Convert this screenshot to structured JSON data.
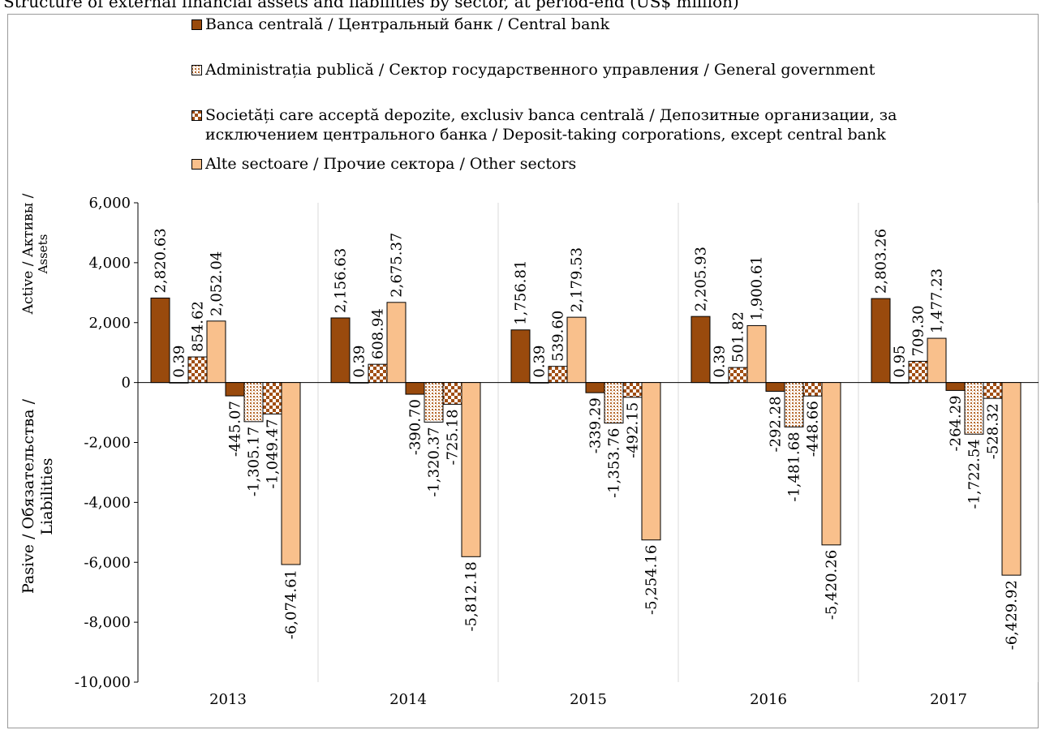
{
  "title": "Structure of external financial assets and liabilities by sector, at period-end (US$ million)",
  "colors": {
    "central_bank": "#994a0d",
    "other_sectors": "#f9c08c",
    "pattern_dark": "#a14e13",
    "pattern_light": "#ffffff"
  },
  "legend": [
    {
      "key": "cb",
      "label": "Banca centrală / Центральный банк / Central bank"
    },
    {
      "key": "gg",
      "label": "Administrația publică / Сектор государственного управления / General government"
    },
    {
      "key": "dt",
      "label": "Societăți care acceptă depozite, exclusiv banca centrală / Депозитные организации, за исключением центрального банка / Deposit-taking corporations, except central bank"
    },
    {
      "key": "os",
      "label": "Alte sectoare / Прочие сектора / Other sectors"
    }
  ],
  "chart_data": {
    "type": "bar",
    "categories": [
      "2013",
      "2014",
      "2015",
      "2016",
      "2017"
    ],
    "ylim": [
      -10000,
      6000
    ],
    "yticks": [
      6000,
      4000,
      2000,
      0,
      -2000,
      -4000,
      -6000,
      -8000,
      -10000
    ],
    "ytick_labels": [
      "6,000",
      "4,000",
      "2,000",
      "0",
      "-2,000",
      "-4,000",
      "-6,000",
      "-8,000",
      "-10,000"
    ],
    "ylabel_assets": "Active  / Активы / Assets",
    "ylabel_liabilities": "Pasive / Обязательства / Liabilities",
    "bar_order": [
      "cb_assets",
      "gg_assets",
      "dt_assets",
      "os_assets",
      "cb_liab",
      "gg_liab",
      "dt_liab",
      "os_liab"
    ],
    "series": [
      {
        "name": "Banca centrală / Центральный банк / Central bank",
        "side": "assets",
        "key": "cb_assets",
        "values": [
          2820.63,
          2156.63,
          1756.81,
          2205.93,
          2803.26
        ],
        "labels": [
          "2,820.63",
          "2,156.63",
          "1,756.81",
          "2,205.93",
          "2,803.26"
        ]
      },
      {
        "name": "Administrația publică / Сектор государственного управления / General government",
        "side": "assets",
        "key": "gg_assets",
        "values": [
          0.39,
          0.39,
          0.39,
          0.39,
          0.95
        ],
        "labels": [
          "0.39",
          "0.39",
          "0.39",
          "0.39",
          "0.95"
        ]
      },
      {
        "name": "Societăți care acceptă depozite, exclusiv banca centrală / Депозитные организации, за исключением центрального банка / Deposit-taking corporations, except central bank",
        "side": "assets",
        "key": "dt_assets",
        "values": [
          854.62,
          608.94,
          539.6,
          501.82,
          709.3
        ],
        "labels": [
          "854.62",
          "608.94",
          "539.60",
          "501.82",
          "709.30"
        ]
      },
      {
        "name": "Alte sectoare / Прочие сектора / Other sectors",
        "side": "assets",
        "key": "os_assets",
        "values": [
          2052.04,
          2675.37,
          2179.53,
          1900.61,
          1477.23
        ],
        "labels": [
          "2,052.04",
          "2,675.37",
          "2,179.53",
          "1,900.61",
          "1,477.23"
        ]
      },
      {
        "name": "Banca centrală / Центральный банк / Central bank",
        "side": "liabilities",
        "key": "cb_liab",
        "values": [
          -445.07,
          -390.7,
          -339.29,
          -292.28,
          -264.29
        ],
        "labels": [
          "-445.07",
          "-390.70",
          "-339.29",
          "-292.28",
          "-264.29"
        ]
      },
      {
        "name": "Administrația publică / Сектор государственного управления / General government",
        "side": "liabilities",
        "key": "gg_liab",
        "values": [
          -1305.17,
          -1320.37,
          -1353.76,
          -1481.68,
          -1722.54
        ],
        "labels": [
          "-1,305.17",
          "-1,320.37",
          "-1,353.76",
          "-1,481.68",
          "-1,722.54"
        ]
      },
      {
        "name": "Societăți care acceptă depozite, exclusiv banca centrală / Депозитные организации, за исключением центрального банка / Deposit-taking corporations, except central bank",
        "side": "liabilities",
        "key": "dt_liab",
        "values": [
          -1049.47,
          -725.18,
          -492.15,
          -448.66,
          -528.32
        ],
        "labels": [
          "-1,049.47",
          "-725.18",
          "-492.15",
          "-448.66",
          "-528.32"
        ]
      },
      {
        "name": "Alte sectoare / Прочие сектора / Other sectors",
        "side": "liabilities",
        "key": "os_liab",
        "values": [
          -6074.61,
          -5812.18,
          -5254.16,
          -5420.26,
          -6429.92
        ],
        "labels": [
          "-6,074.61",
          "-5,812.18",
          "-5,254.16",
          "-5,420.26",
          "-6,429.92"
        ]
      }
    ]
  }
}
